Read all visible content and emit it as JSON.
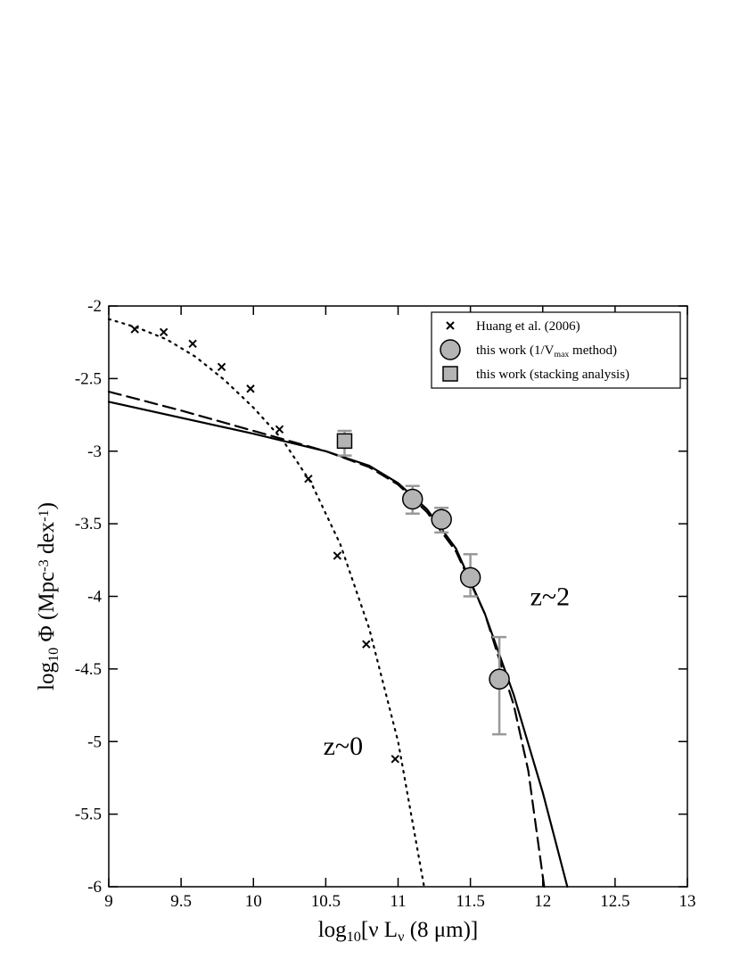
{
  "chart_data": {
    "type": "scatter",
    "xlabel": [
      {
        "text": "log"
      },
      {
        "text": "10",
        "shift": "sub"
      },
      {
        "text": "[ν L"
      },
      {
        "text": "ν",
        "shift": "sub"
      },
      {
        "text": " (8 μm)]"
      }
    ],
    "ylabel": [
      {
        "text": "log"
      },
      {
        "text": "10",
        "shift": "sub"
      },
      {
        "text": " Φ  (Mpc"
      },
      {
        "text": "-3",
        "shift": "sup"
      },
      {
        "text": " dex"
      },
      {
        "text": "-1",
        "shift": "sup"
      },
      {
        "text": ")"
      }
    ],
    "xlim": [
      9,
      13
    ],
    "ylim": [
      -6,
      -2
    ],
    "xticks": [
      9,
      9.5,
      10,
      10.5,
      11,
      11.5,
      12,
      12.5,
      13
    ],
    "yticks": [
      -6,
      -5.5,
      -5,
      -4.5,
      -4,
      -3.5,
      -3,
      -2.5,
      -2
    ],
    "legend": "upper right",
    "annotations": [
      {
        "text": "z~2",
        "x": 12.05,
        "y": -4.06
      },
      {
        "text": "z~0",
        "x": 10.62,
        "y": -5.09
      }
    ],
    "series": [
      {
        "name": [
          {
            "text": "Huang et al. (2006)"
          }
        ],
        "marker": "x",
        "color": "#000000",
        "x": [
          9.18,
          9.38,
          9.58,
          9.78,
          9.98,
          10.18,
          10.38,
          10.58,
          10.78,
          10.98
        ],
        "values": [
          -2.16,
          -2.18,
          -2.26,
          -2.42,
          -2.57,
          -2.85,
          -3.19,
          -3.72,
          -4.33,
          -5.12
        ]
      },
      {
        "name": [
          {
            "text": "this work  (1/V"
          },
          {
            "text": "max",
            "shift": "sub"
          },
          {
            "text": " method)"
          }
        ],
        "marker": "circle",
        "color": "#b4b4b4",
        "error_color": "#999999",
        "x": [
          11.1,
          11.3,
          11.5,
          11.7
        ],
        "values": [
          -3.33,
          -3.47,
          -3.87,
          -4.57
        ],
        "err_plus": [
          0.09,
          0.08,
          0.16,
          0.29
        ],
        "err_minus": [
          0.1,
          0.09,
          0.13,
          0.38
        ]
      },
      {
        "name": [
          {
            "text": "this work (stacking analysis)"
          }
        ],
        "marker": "square",
        "color": "#b4b4b4",
        "error_color": "#999999",
        "x": [
          10.63
        ],
        "values": [
          -2.93
        ],
        "err_plus": [
          0.07
        ],
        "err_minus": [
          0.1
        ]
      },
      {
        "marker": "none",
        "line": "solid",
        "color": "#000000",
        "x": [
          9,
          9.5,
          10,
          10.5,
          10.8,
          11,
          11.2,
          11.4,
          11.6,
          11.8,
          12,
          12.17
        ],
        "values": [
          -2.66,
          -2.77,
          -2.88,
          -3.0,
          -3.1,
          -3.22,
          -3.4,
          -3.67,
          -4.12,
          -4.68,
          -5.35,
          -6
        ]
      },
      {
        "marker": "none",
        "line": "dashed",
        "color": "#000000",
        "x": [
          9,
          9.5,
          10,
          10.5,
          10.8,
          11,
          11.2,
          11.4,
          11.6,
          11.8,
          11.9,
          12.01
        ],
        "values": [
          -2.59,
          -2.72,
          -2.86,
          -3.0,
          -3.11,
          -3.23,
          -3.42,
          -3.69,
          -4.12,
          -4.75,
          -5.2,
          -6
        ]
      },
      {
        "marker": "none",
        "line": "dotted",
        "color": "#000000",
        "x": [
          9,
          9.2,
          9.4,
          9.6,
          9.8,
          10,
          10.2,
          10.4,
          10.6,
          10.8,
          11,
          11.18
        ],
        "values": [
          -2.09,
          -2.15,
          -2.23,
          -2.35,
          -2.51,
          -2.7,
          -2.92,
          -3.22,
          -3.64,
          -4.22,
          -5.0,
          -6
        ]
      }
    ]
  }
}
